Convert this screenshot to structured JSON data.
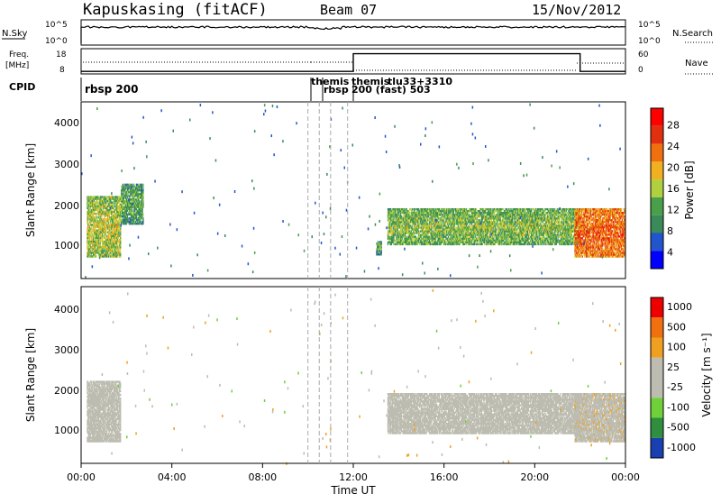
{
  "header": {
    "station": "Kapuskasing (fitACF)",
    "beam": "Beam 07",
    "date": "15/Nov/2012"
  },
  "strips": {
    "noise": {
      "left_label": "N.Sky",
      "left_ticks": [
        "10^5",
        "10^0"
      ],
      "right_ticks": [
        "10^5",
        "10^0"
      ],
      "right_label": "N.Search"
    },
    "freq": {
      "left_label_1": "Freq.",
      "left_label_2": "[MHz]",
      "left_ticks": [
        "18",
        "8"
      ],
      "right_ticks": [
        "60",
        "0"
      ],
      "right_label": "Nave"
    },
    "cpid": {
      "label": "CPID",
      "program_1": "rbsp 200",
      "program_2": "themis",
      "program_3": "rbsp",
      "program_4": "themis",
      "program_5": "tlu33+3310",
      "program_6": "200 (fast) 503"
    }
  },
  "power_panel": {
    "ylabel": "Slant Range [km]",
    "yticks": [
      "4000",
      "3000",
      "2000",
      "1000"
    ],
    "colorbar_label": "Power [dB]",
    "colorbar_ticks": [
      "28",
      "24",
      "20",
      "16",
      "12",
      "8",
      "4"
    ]
  },
  "velocity_panel": {
    "ylabel": "Slant Range [km]",
    "yticks": [
      "4000",
      "3000",
      "2000",
      "1000"
    ],
    "colorbar_label": "Velocity [m s⁻¹]",
    "colorbar_ticks": [
      "1000",
      "500",
      "100",
      "25",
      "-25",
      "-100",
      "-500",
      "-1000"
    ]
  },
  "xaxis": {
    "ticks": [
      "00:00",
      "04:00",
      "08:00",
      "12:00",
      "16:00",
      "20:00",
      "00:00"
    ],
    "label": "Time UT"
  },
  "colors": {
    "power_scale": [
      "#0000ff",
      "#2255cc",
      "#3a8a5a",
      "#4aa04a",
      "#b0d040",
      "#f0b020",
      "#f07010",
      "#e03010",
      "#ff0000"
    ],
    "velocity_scale": [
      "#1a3fb0",
      "#2f8f3f",
      "#6fd03a",
      "#bcbcb0",
      "#bcbcb0",
      "#f0a020",
      "#f07010",
      "#ee0000"
    ],
    "ground_scatter": "#bcbcb0"
  },
  "chart_data": {
    "type": "heatmap",
    "x_range_hours": [
      0,
      24
    ],
    "y_range_km": [
      180,
      4500
    ],
    "power_range_db": [
      0,
      32
    ],
    "velocity_range_ms": [
      -1200,
      1200
    ],
    "program_changes_ut": [
      "10:00",
      "10:30",
      "11:00",
      "11:45"
    ],
    "freq_mhz_segments": [
      {
        "from_ut": "00:00",
        "to_ut": "12:00",
        "value": 9
      },
      {
        "from_ut": "12:00",
        "to_ut": "22:00",
        "value": 16
      },
      {
        "from_ut": "22:00",
        "to_ut": "24:00",
        "value": 9
      }
    ],
    "power_echo_regions": [
      {
        "ut_start": "00:15",
        "ut_end": "01:45",
        "range_start_km": 700,
        "range_end_km": 2200,
        "power_db": 14
      },
      {
        "ut_start": "01:45",
        "ut_end": "02:45",
        "range_start_km": 1500,
        "range_end_km": 2500,
        "power_db": 10
      },
      {
        "ut_start": "13:30",
        "ut_end": "22:00",
        "range_start_km": 1000,
        "range_end_km": 1900,
        "power_db": 12
      },
      {
        "ut_start": "21:45",
        "ut_end": "24:00",
        "range_start_km": 700,
        "range_end_km": 1900,
        "power_db": 22
      },
      {
        "ut_start": "13:00",
        "ut_end": "13:15",
        "range_start_km": 750,
        "range_end_km": 1100,
        "power_db": 10
      }
    ],
    "velocity_echo_regions": [
      {
        "ut_start": "00:15",
        "ut_end": "01:45",
        "range_start_km": 700,
        "range_end_km": 2200,
        "velocity_ms": -200
      },
      {
        "ut_start": "13:30",
        "ut_end": "22:00",
        "range_start_km": 900,
        "range_end_km": 1900,
        "velocity_ms": 0
      },
      {
        "ut_start": "21:45",
        "ut_end": "24:00",
        "range_start_km": 700,
        "range_end_km": 1900,
        "velocity_ms": 0
      }
    ]
  }
}
